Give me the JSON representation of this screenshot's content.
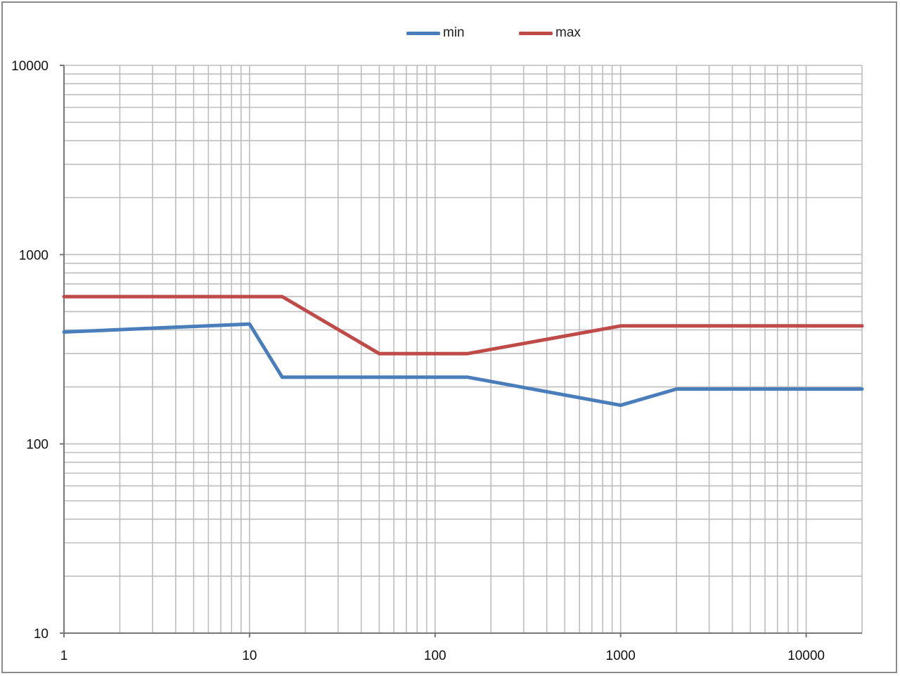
{
  "chart_data": {
    "type": "line",
    "title": "",
    "xlabel": "",
    "ylabel": "",
    "x_scale": "log",
    "y_scale": "log",
    "xlim": [
      1,
      20000
    ],
    "ylim": [
      10,
      10000
    ],
    "grid": true,
    "legend_position": "top",
    "x_ticks": [
      "1",
      "10",
      "100",
      "1000",
      "10000"
    ],
    "y_ticks": [
      "10",
      "100",
      "1000",
      "10000"
    ],
    "series": [
      {
        "name": "min",
        "color": "#4a7ebb",
        "x": [
          1,
          10,
          15,
          150,
          1000,
          2000,
          20000
        ],
        "y": [
          390,
          430,
          225,
          225,
          160,
          195,
          195
        ]
      },
      {
        "name": "max",
        "color": "#be4b48",
        "x": [
          1,
          15,
          50,
          150,
          1000,
          20000
        ],
        "y": [
          600,
          600,
          300,
          300,
          420,
          420
        ]
      }
    ]
  }
}
